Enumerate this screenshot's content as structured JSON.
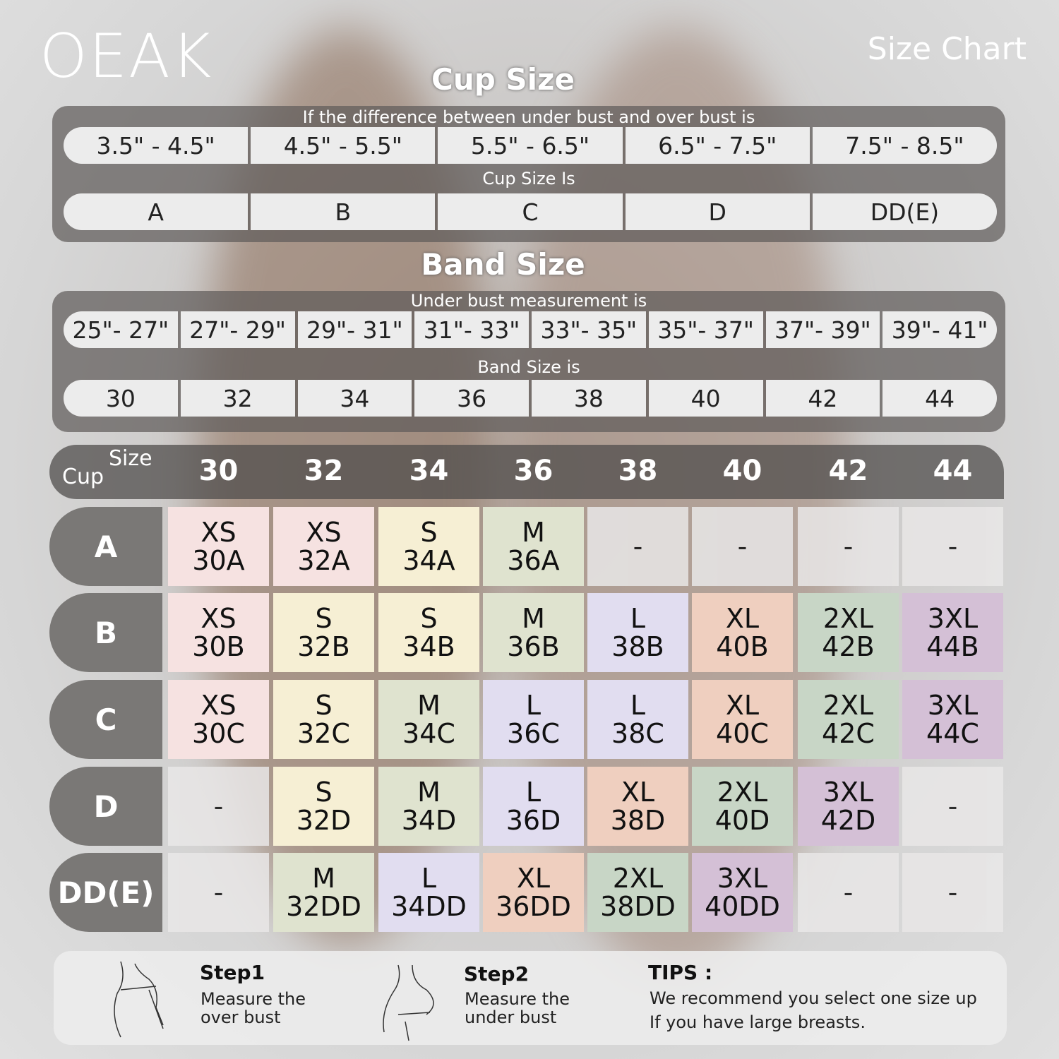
{
  "brand": "OEAK",
  "title": "Size Chart",
  "cup_section": {
    "heading": "Cup Size",
    "diff_label": "If the  difference between under bust and over bust is",
    "ranges": [
      "3.5\" -  4.5\"",
      "4.5\" -  5.5\"",
      "5.5\" -  6.5\"",
      "6.5\" -  7.5\"",
      "7.5\" -  8.5\""
    ],
    "cup_label": "Cup Size Is",
    "cups": [
      "A",
      "B",
      "C",
      "D",
      "DD(E)"
    ]
  },
  "band_section": {
    "heading": "Band Size",
    "under_label": "Under bust measurement is",
    "ranges": [
      "25\"- 27\"",
      "27\"- 29\"",
      "29\"- 31\"",
      "31\"- 33\"",
      "33\"- 35\"",
      "35\"- 37\"",
      "37\"- 39\"",
      "39\"- 41\""
    ],
    "band_label": "Band Size is",
    "bands": [
      "30",
      "32",
      "34",
      "36",
      "38",
      "40",
      "42",
      "44"
    ]
  },
  "table": {
    "corner_size": "Size",
    "corner_cup": "Cup",
    "columns": [
      "30",
      "32",
      "34",
      "36",
      "38",
      "40",
      "42",
      "44"
    ],
    "rows": [
      {
        "cup": "A",
        "cells": [
          [
            "XS",
            "30A"
          ],
          [
            "XS",
            "32A"
          ],
          [
            "S",
            "34A"
          ],
          [
            "M",
            "36A"
          ],
          [
            "-"
          ],
          [
            "-"
          ],
          [
            "-"
          ],
          [
            "-"
          ]
        ]
      },
      {
        "cup": "B",
        "cells": [
          [
            "XS",
            "30B"
          ],
          [
            "S",
            "32B"
          ],
          [
            "S",
            "34B"
          ],
          [
            "M",
            "36B"
          ],
          [
            "L",
            "38B"
          ],
          [
            "XL",
            "40B"
          ],
          [
            "2XL",
            "42B"
          ],
          [
            "3XL",
            "44B"
          ]
        ]
      },
      {
        "cup": "C",
        "cells": [
          [
            "XS",
            "30C"
          ],
          [
            "S",
            "32C"
          ],
          [
            "M",
            "34C"
          ],
          [
            "L",
            "36C"
          ],
          [
            "L",
            "38C"
          ],
          [
            "XL",
            "40C"
          ],
          [
            "2XL",
            "42C"
          ],
          [
            "3XL",
            "44C"
          ]
        ]
      },
      {
        "cup": "D",
        "cells": [
          [
            "-"
          ],
          [
            "S",
            "32D"
          ],
          [
            "M",
            "34D"
          ],
          [
            "L",
            "36D"
          ],
          [
            "XL",
            "38D"
          ],
          [
            "2XL",
            "40D"
          ],
          [
            "3XL",
            "42D"
          ],
          [
            "-"
          ]
        ]
      },
      {
        "cup": "DD(E)",
        "cells": [
          [
            "-"
          ],
          [
            "M",
            "32DD"
          ],
          [
            "L",
            "34DD"
          ],
          [
            "XL",
            "36DD"
          ],
          [
            "2XL",
            "38DD"
          ],
          [
            "3XL",
            "40DD"
          ],
          [
            "-"
          ],
          [
            "-"
          ]
        ]
      }
    ]
  },
  "size_colors": {
    "XS": "#f6e2e1",
    "S": "#f6efd4",
    "M": "#dfe3cf",
    "L": "#e1ddf0",
    "XL": "#efcfbf",
    "2XL": "#c8d6c6",
    "3XL": "#d4c0d6",
    "-": "#e9e7e7"
  },
  "footer": {
    "step1_title": "Step1",
    "step1_text": "Measure the over bust",
    "step2_title": "Step2",
    "step2_text": "Measure the under bust",
    "tips_title": "TIPS :",
    "tips_line1": "We recommend you select one size up",
    "tips_line2": "If you have large breasts."
  }
}
